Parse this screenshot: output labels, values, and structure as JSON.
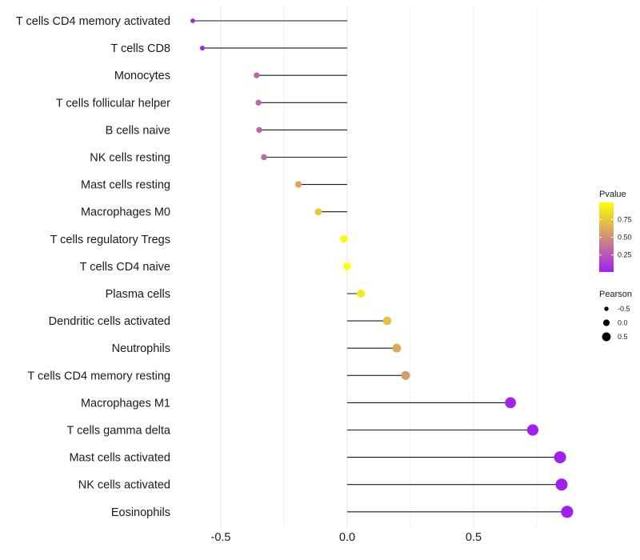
{
  "chart_data": {
    "type": "lollipop",
    "title": "",
    "xlabel": "",
    "ylabel": "",
    "xlim": [
      -0.7,
      0.95
    ],
    "x_ticks": [
      -0.5,
      0.0,
      0.5
    ],
    "x_tick_labels": [
      "-0.5",
      "0.0",
      "0.5"
    ],
    "grid": true,
    "categories": [
      "T cells CD4 memory activated",
      "T cells CD8",
      "Monocytes",
      "T cells follicular helper",
      "B cells naive",
      "NK cells resting",
      "Mast cells resting",
      "Macrophages M0",
      "T cells regulatory  Tregs",
      "T cells CD4 naive",
      "Plasma cells",
      "Dendritic cells activated",
      "Neutrophils",
      "T cells CD4 memory resting",
      "Macrophages M1",
      "T cells gamma delta",
      "Mast cells activated",
      "NK cells activated",
      "Eosinophils"
    ],
    "pearson": [
      -0.611,
      -0.573,
      -0.358,
      -0.351,
      -0.348,
      -0.329,
      -0.193,
      -0.114,
      -0.013,
      0.0,
      0.054,
      0.158,
      0.196,
      0.231,
      0.646,
      0.734,
      0.842,
      0.848,
      0.87
    ],
    "pvalue": [
      0.01,
      0.01,
      0.3,
      0.3,
      0.3,
      0.32,
      0.6,
      0.75,
      0.97,
      1.0,
      0.9,
      0.72,
      0.62,
      0.55,
      0.02,
      0.01,
      0.001,
      0.001,
      0.001
    ],
    "legend": {
      "color": {
        "title": "Pvalue",
        "ticks": [
          0.25,
          0.5,
          0.75
        ],
        "labels": [
          "0.25",
          "0.50",
          "0.75"
        ],
        "low_color": "#a020f0",
        "high_color": "#ffff00"
      },
      "size": {
        "title": "Pearson",
        "values": [
          -0.5,
          0.0,
          0.5
        ],
        "labels": [
          "-0.5",
          "0.0",
          "0.5"
        ]
      },
      "placement": "right"
    }
  }
}
